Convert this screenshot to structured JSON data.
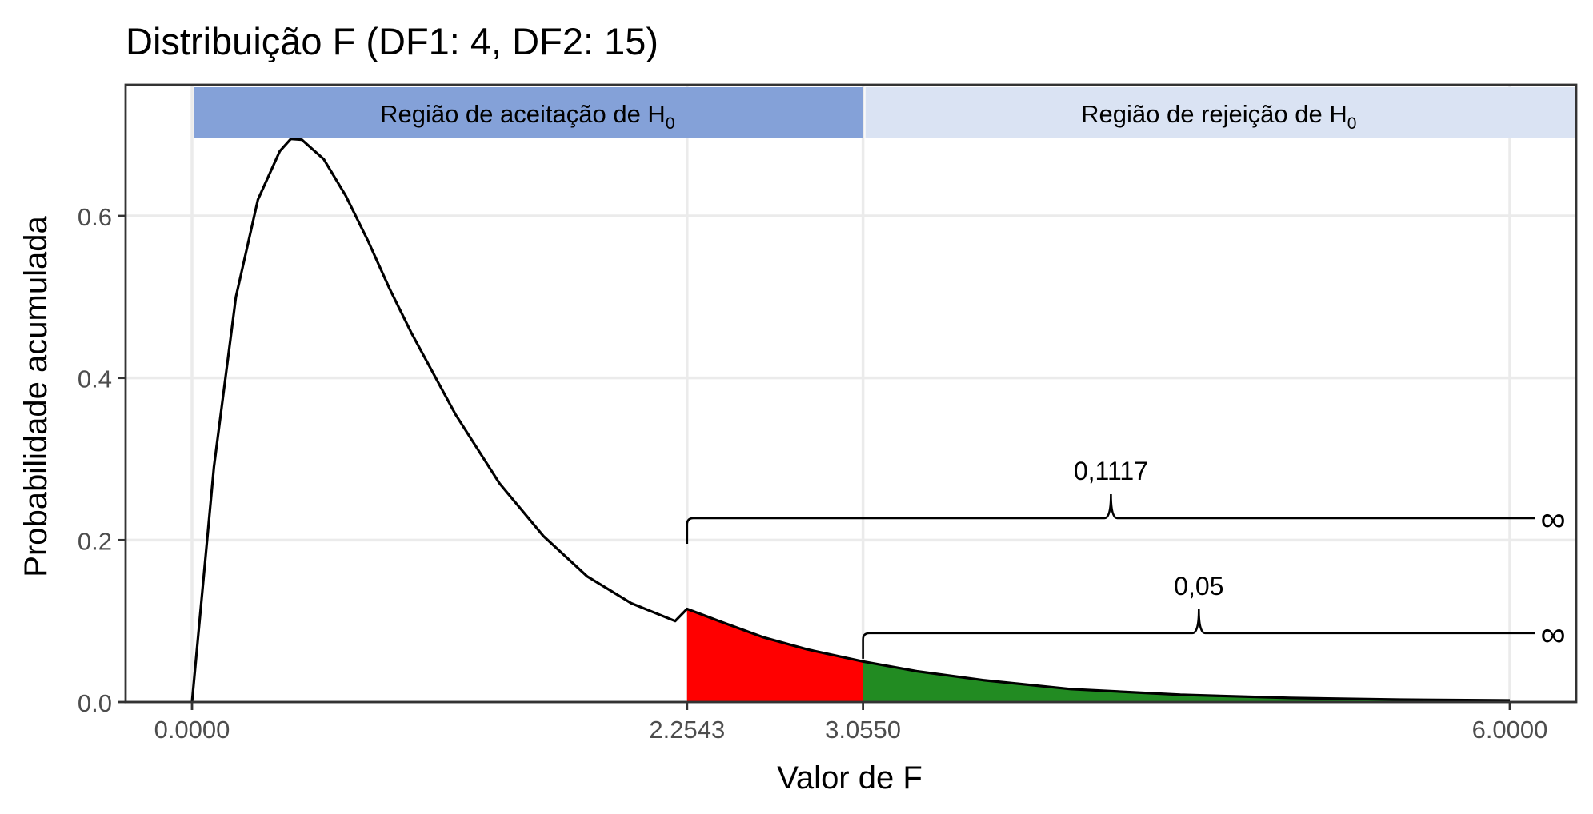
{
  "chart_data": {
    "type": "area",
    "title": "Distribuição F (DF1: 4, DF2: 15)",
    "xlabel": "Valor de F",
    "ylabel": "Probabilidade acumulada",
    "xlim": [
      -0.3,
      6.3
    ],
    "ylim": [
      0,
      0.76
    ],
    "grid": true,
    "x_ticks": [
      0,
      2.2543,
      3.055,
      6
    ],
    "x_tick_labels": [
      "0.0000",
      "2.2543",
      "3.0550",
      "6.0000"
    ],
    "y_ticks": [
      0,
      0.2,
      0.4,
      0.6
    ],
    "y_tick_labels": [
      "0.0",
      "0.2",
      "0.4",
      "0.6"
    ],
    "df1": 4,
    "df2": 15,
    "curve": {
      "x": [
        0,
        0.1,
        0.2,
        0.3,
        0.4,
        0.45,
        0.5,
        0.6,
        0.7,
        0.8,
        0.9,
        1.0,
        1.2,
        1.4,
        1.6,
        1.8,
        2.0,
        2.2,
        2.2543,
        2.4,
        2.6,
        2.8,
        3.055,
        3.3,
        3.6,
        4.0,
        4.5,
        5.0,
        5.5,
        6.0
      ],
      "y": [
        0,
        0.29,
        0.5,
        0.62,
        0.68,
        0.695,
        0.694,
        0.67,
        0.625,
        0.57,
        0.51,
        0.455,
        0.355,
        0.27,
        0.205,
        0.155,
        0.122,
        0.1,
        0.115,
        0.1,
        0.08,
        0.065,
        0.05,
        0.038,
        0.027,
        0.016,
        0.009,
        0.005,
        0.003,
        0.002
      ]
    },
    "regions": [
      {
        "label": "Região de aceitação de H",
        "subscript": "0",
        "from": 0,
        "to": 3.055,
        "color": "#84A1D8"
      },
      {
        "label": "Região de rejeição de H",
        "subscript": "0",
        "from": 3.055,
        "to": 6.3,
        "color": "#DAE3F3"
      }
    ],
    "shaded": [
      {
        "from": 2.2543,
        "to": 3.055,
        "color": "#FF0000"
      },
      {
        "from": 3.055,
        "to": 6.0,
        "color": "#228B22"
      }
    ],
    "braces": [
      {
        "from": 2.2543,
        "label": "0,1117",
        "y": 0.227,
        "end_symbol": "∞"
      },
      {
        "from": 3.055,
        "label": "0,05",
        "y": 0.085,
        "end_symbol": "∞"
      }
    ],
    "colors": {
      "curve": "#000000",
      "grid": "#EBEBEB",
      "panel_border": "#333333",
      "acceptance": "#84A1D8",
      "rejection": "#DAE3F3",
      "p_value_area": "#FF0000",
      "alpha_area": "#228B22"
    }
  }
}
